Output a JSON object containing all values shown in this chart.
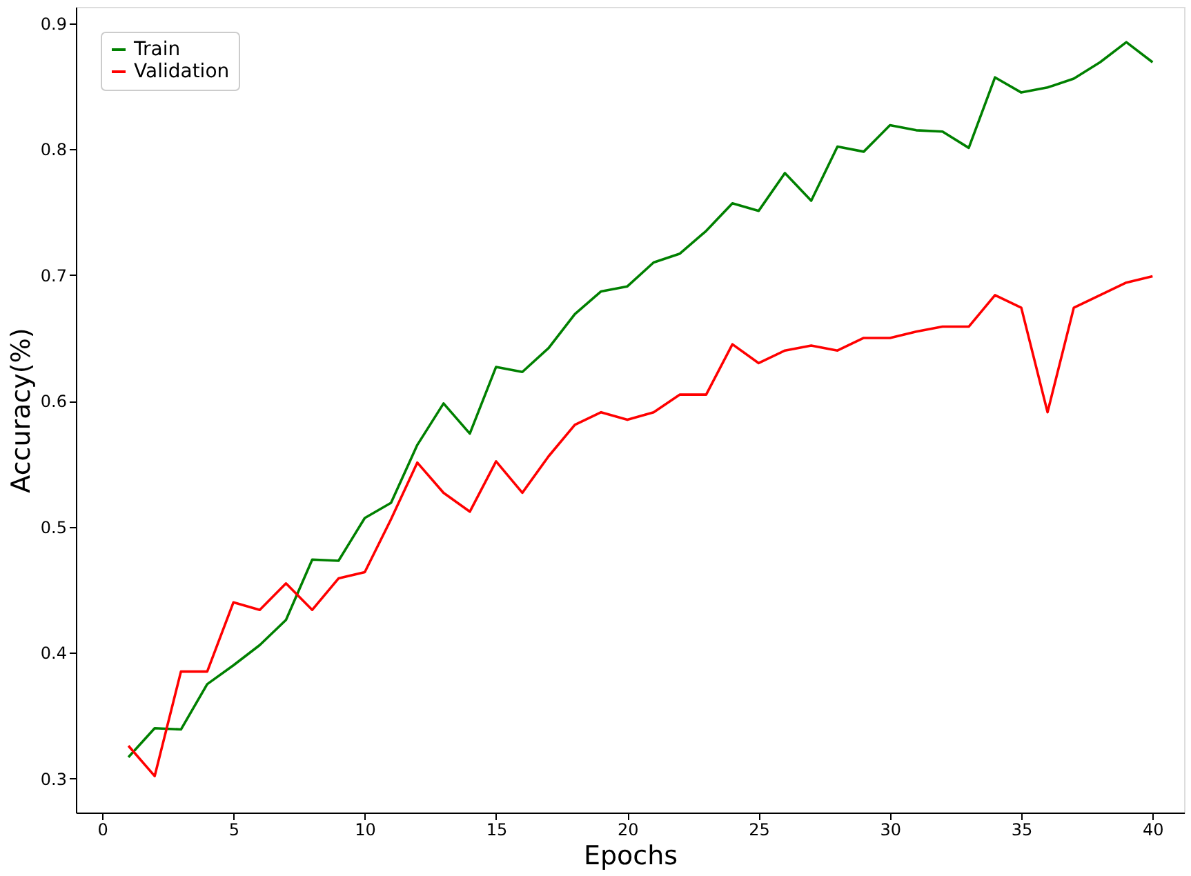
{
  "chart_data": {
    "type": "line",
    "xlabel": "Epochs",
    "ylabel": "Accuracy(%)",
    "x": [
      1,
      2,
      3,
      4,
      5,
      6,
      7,
      8,
      9,
      10,
      11,
      12,
      13,
      14,
      15,
      16,
      17,
      18,
      19,
      20,
      21,
      22,
      23,
      24,
      25,
      26,
      27,
      28,
      29,
      30,
      31,
      32,
      33,
      34,
      35,
      36,
      37,
      38,
      39,
      40
    ],
    "series": [
      {
        "name": "Train",
        "color": "#008000",
        "values": [
          0.317,
          0.34,
          0.339,
          0.375,
          0.39,
          0.406,
          0.426,
          0.474,
          0.473,
          0.507,
          0.519,
          0.565,
          0.598,
          0.574,
          0.627,
          0.623,
          0.642,
          0.669,
          0.687,
          0.691,
          0.71,
          0.717,
          0.735,
          0.757,
          0.751,
          0.781,
          0.759,
          0.802,
          0.798,
          0.819,
          0.815,
          0.814,
          0.801,
          0.857,
          0.845,
          0.849,
          0.856,
          0.869,
          0.885,
          0.869
        ]
      },
      {
        "name": "Validation",
        "color": "#ff0000",
        "values": [
          0.326,
          0.302,
          0.385,
          0.385,
          0.44,
          0.434,
          0.455,
          0.434,
          0.459,
          0.464,
          0.506,
          0.551,
          0.527,
          0.512,
          0.552,
          0.527,
          0.556,
          0.581,
          0.591,
          0.585,
          0.591,
          0.605,
          0.605,
          0.645,
          0.63,
          0.64,
          0.644,
          0.64,
          0.65,
          0.65,
          0.655,
          0.659,
          0.659,
          0.684,
          0.674,
          0.591,
          0.674,
          0.684,
          0.694,
          0.699
        ]
      }
    ],
    "xlim": [
      -1,
      41.2
    ],
    "ylim": [
      0.273,
      0.913
    ],
    "xticks": [
      0,
      5,
      10,
      15,
      20,
      25,
      30,
      35,
      40
    ],
    "yticks": [
      0.3,
      0.4,
      0.5,
      0.6,
      0.7,
      0.8,
      0.9
    ],
    "grid": false,
    "legend": "top left",
    "marker": "none",
    "line_style": "solid"
  }
}
